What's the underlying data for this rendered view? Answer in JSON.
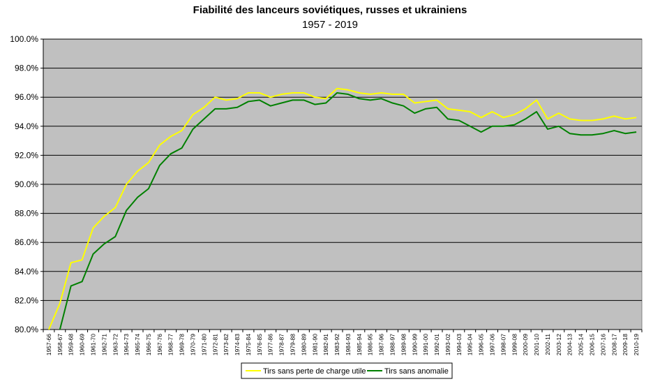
{
  "chart_data": {
    "type": "line",
    "title": "Fiabilité des lanceurs soviétiques, russes et ukrainiens",
    "subtitle": "1957 - 2019",
    "ylim": [
      80.0,
      100.0
    ],
    "y_ticks": [
      "80.0%",
      "82.0%",
      "84.0%",
      "86.0%",
      "88.0%",
      "90.0%",
      "92.0%",
      "94.0%",
      "96.0%",
      "98.0%",
      "100.0%"
    ],
    "y_tick_values": [
      80,
      82,
      84,
      86,
      88,
      90,
      92,
      94,
      96,
      98,
      100
    ],
    "categories": [
      "1957-66",
      "1958-67",
      "1959-68",
      "1960-69",
      "1961-70",
      "1962-71",
      "1963-72",
      "1964-73",
      "1965-74",
      "1966-75",
      "1967-76",
      "1968-77",
      "1969-78",
      "1970-79",
      "1971-80",
      "1972-81",
      "1973-82",
      "1974-83",
      "1975-84",
      "1976-85",
      "1977-86",
      "1978-87",
      "1979-88",
      "1980-89",
      "1981-90",
      "1982-91",
      "1983-92",
      "1984-93",
      "1985-94",
      "1986-95",
      "1987-96",
      "1988-97",
      "1989-98",
      "1990-99",
      "1991-00",
      "1992-01",
      "1993-02",
      "1994-03",
      "1995-04",
      "1996-05",
      "1997-06",
      "1998-07",
      "1999-08",
      "2000-09",
      "2001-10",
      "2002-11",
      "2003-12",
      "2004-13",
      "2005-14",
      "2006-15",
      "2007-16",
      "2008-17",
      "2009-18",
      "2010-19"
    ],
    "grid": true,
    "plot_background": "#c0c0c0",
    "legend_position": "bottom",
    "series": [
      {
        "name": "Tirs sans perte de charge utile",
        "color": "#ffff00",
        "values": [
          80.0,
          81.8,
          84.6,
          84.8,
          87.0,
          87.8,
          88.4,
          90.0,
          90.9,
          91.5,
          92.7,
          93.3,
          93.7,
          94.8,
          95.3,
          96.0,
          95.8,
          95.9,
          96.3,
          96.3,
          96.0,
          96.2,
          96.3,
          96.3,
          96.0,
          95.9,
          96.6,
          96.5,
          96.3,
          96.2,
          96.3,
          96.2,
          96.2,
          95.6,
          95.7,
          95.8,
          95.2,
          95.1,
          95.0,
          94.6,
          95.0,
          94.6,
          94.8,
          95.2,
          95.8,
          94.5,
          94.9,
          94.5,
          94.4,
          94.4,
          94.5,
          94.7,
          94.5,
          94.6
        ]
      },
      {
        "name": "Tirs sans anomalie",
        "color": "#008000",
        "values": [
          null,
          80.0,
          83.0,
          83.3,
          85.2,
          85.9,
          86.4,
          88.2,
          89.1,
          89.7,
          91.3,
          92.1,
          92.5,
          93.8,
          94.5,
          95.2,
          95.2,
          95.3,
          95.7,
          95.8,
          95.4,
          95.6,
          95.8,
          95.8,
          95.5,
          95.6,
          96.3,
          96.2,
          95.9,
          95.8,
          95.9,
          95.6,
          95.4,
          94.9,
          95.2,
          95.3,
          94.5,
          94.4,
          94.0,
          93.6,
          94.0,
          94.0,
          94.1,
          94.5,
          95.0,
          93.8,
          94.0,
          93.5,
          93.4,
          93.4,
          93.5,
          93.7,
          93.5,
          93.6
        ]
      }
    ]
  }
}
